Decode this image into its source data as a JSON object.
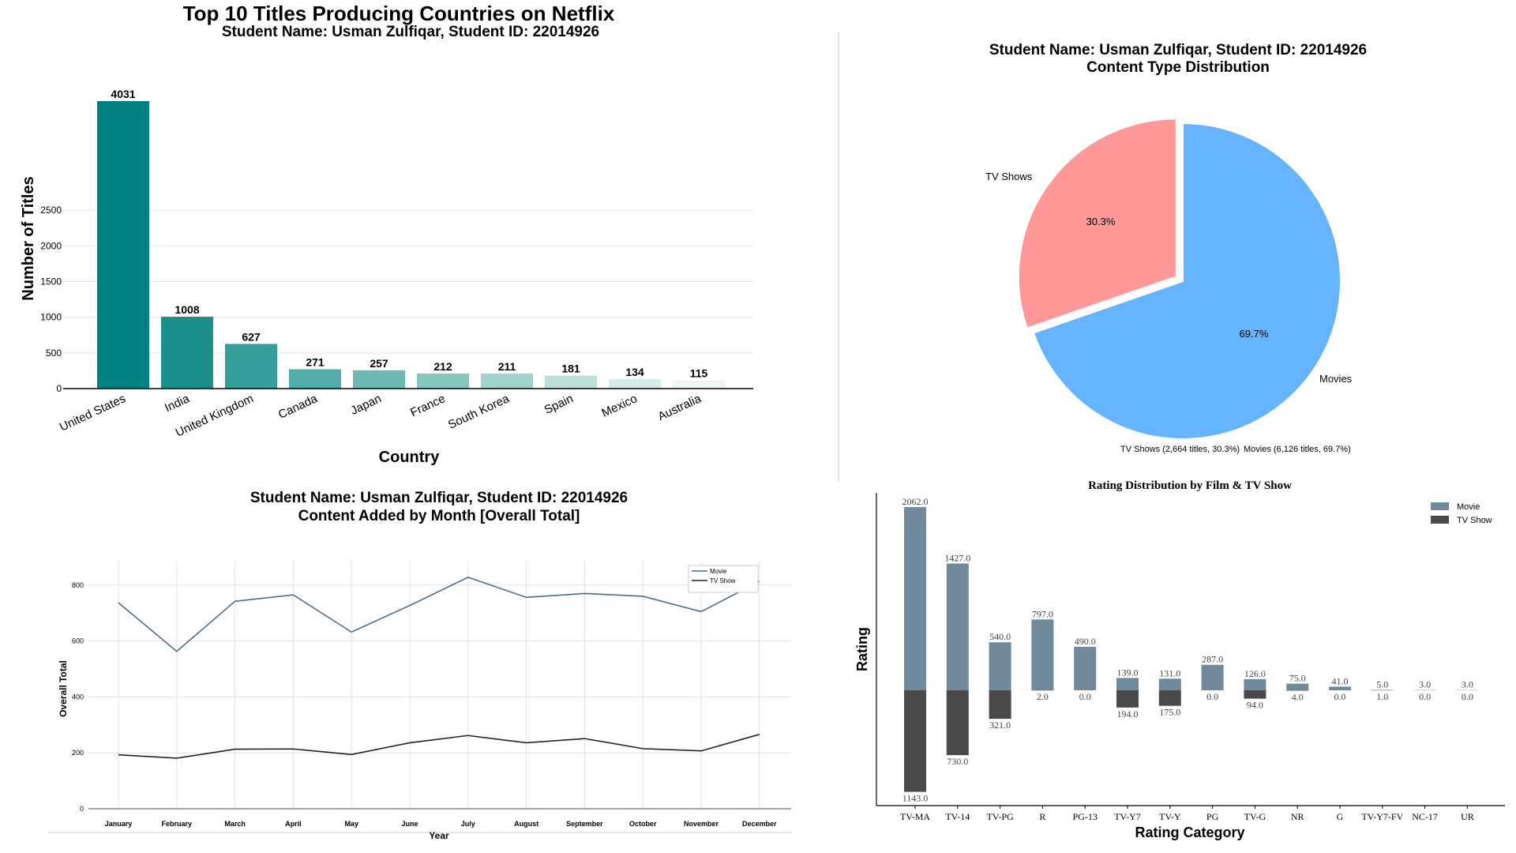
{
  "chart_data": [
    {
      "type": "bar",
      "title": "Top 10 Titles Producing Countries on Netflix",
      "subtitle": "Student Name: Usman Zulfiqar, Student ID: 22014926",
      "xlabel": "Country",
      "ylabel": "Number of Titles",
      "categories": [
        "United States",
        "India",
        "United Kingdom",
        "Canada",
        "Japan",
        "France",
        "South Korea",
        "Spain",
        "Mexico",
        "Australia"
      ],
      "values": [
        4031,
        1008,
        627,
        271,
        257,
        212,
        211,
        181,
        134,
        115
      ],
      "data_labels": [
        "4031",
        "1008",
        "627",
        "271",
        "257",
        "212",
        "211",
        "181",
        "134",
        "115"
      ],
      "yticks": [
        "0",
        "500",
        "1000",
        "1500",
        "2000",
        "2500"
      ],
      "ytick_values": [
        0,
        500,
        1000,
        1500,
        2000,
        2500
      ],
      "ylim": [
        0,
        4031
      ],
      "colors": [
        "#008080",
        "#1a8f8c",
        "#369e99",
        "#52aca7",
        "#6db9b3",
        "#88c6c0",
        "#a2d2cc",
        "#bcdfda",
        "#d5ebe8",
        "#eef6f5"
      ],
      "grid": true
    },
    {
      "type": "pie",
      "title": "Student Name: Usman Zulfiqar, Student ID: 22014926",
      "subtitle": "Content Type Distribution",
      "slices": [
        {
          "label": "Movies",
          "value": 69.7,
          "pct_label": "69.7%",
          "color": "#66b3ff"
        },
        {
          "label": "TV Shows",
          "value": 30.3,
          "pct_label": "30.3%",
          "color": "#ff9999"
        }
      ],
      "legend": [
        "TV Shows (2,664 titles, 30.3%)",
        "Movies (6,126 titles, 69.7%)"
      ],
      "legend_placement": "bottom"
    },
    {
      "type": "line",
      "title": "Student Name: Usman Zulfiqar, Student ID: 22014926",
      "subtitle": "Content Added by Month [Overall Total]",
      "xlabel": "Year",
      "ylabel": "Overall Total",
      "categories": [
        "January",
        "February",
        "March",
        "April",
        "May",
        "June",
        "July",
        "August",
        "September",
        "October",
        "November",
        "December"
      ],
      "series": [
        {
          "name": "Movie",
          "values": [
            737,
            563,
            742,
            765,
            632,
            727,
            828,
            756,
            770,
            760,
            705,
            813
          ],
          "color": "#4f6d84"
        },
        {
          "name": "TV Show",
          "values": [
            193,
            181,
            213,
            214,
            194,
            236,
            262,
            236,
            251,
            215,
            207,
            266
          ],
          "color": "#222222"
        }
      ],
      "yticks": [
        "0",
        "200",
        "400",
        "600",
        "800"
      ],
      "ytick_values": [
        0,
        200,
        400,
        600,
        800
      ],
      "ylim": [
        0,
        870
      ],
      "grid": true,
      "legend_placement": "top-right"
    },
    {
      "type": "bar",
      "title": "Rating Distribution by Film & TV Show",
      "xlabel": "Rating Category",
      "ylabel": "Rating",
      "categories": [
        "TV-MA",
        "TV-14",
        "TV-PG",
        "R",
        "PG-13",
        "TV-Y7",
        "TV-Y",
        "PG",
        "TV-G",
        "NR",
        "G",
        "TV-Y7-FV",
        "NC-17",
        "UR"
      ],
      "series": [
        {
          "name": "Movie",
          "values": [
            2062,
            1427,
            540,
            797,
            490,
            139,
            131,
            287,
            126,
            75,
            41,
            5,
            3,
            3
          ],
          "labels": [
            "2062.0",
            "1427.0",
            "540.0",
            "797.0",
            "490.0",
            "139.0",
            "131.0",
            "287.0",
            "126.0",
            "75.0",
            "41.0",
            "5.0",
            "3.0",
            "3.0"
          ],
          "color": "#708a9c"
        },
        {
          "name": "TV Show",
          "values": [
            1143,
            730,
            321,
            2,
            0,
            194,
            175,
            0,
            94,
            4,
            0,
            1,
            0,
            0
          ],
          "labels": [
            "1143.0",
            "730.0",
            "321.0",
            "2.0",
            "0.0",
            "194.0",
            "175.0",
            "0.0",
            "94.0",
            "4.0",
            "0.0",
            "1.0",
            "0.0",
            "0.0"
          ],
          "color": "#4a4a4a"
        }
      ],
      "layout": "diverging",
      "legend_placement": "top-right"
    }
  ]
}
